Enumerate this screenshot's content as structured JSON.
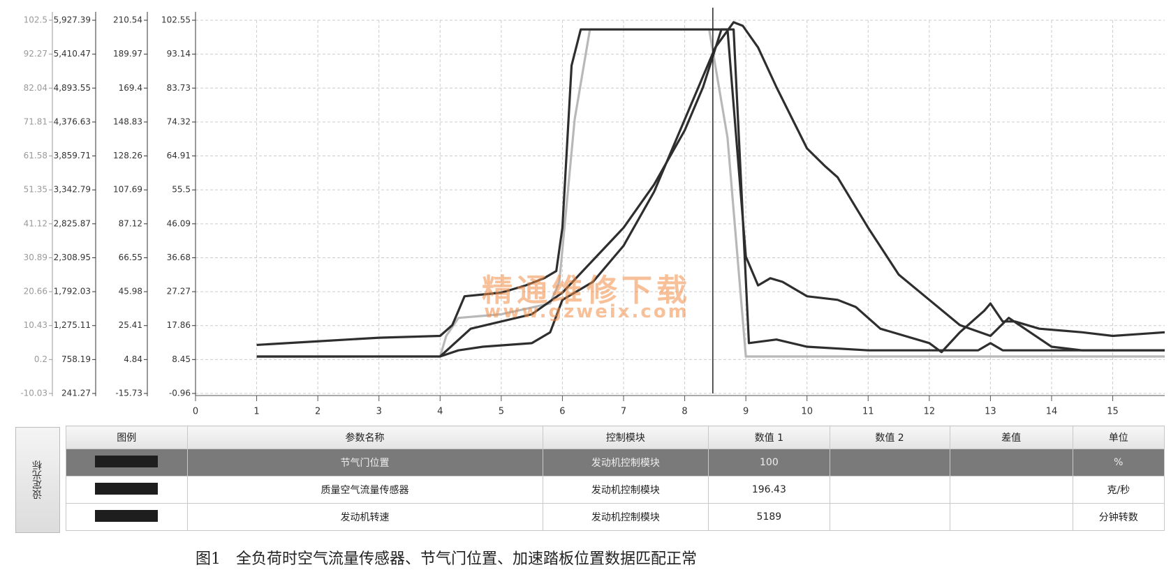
{
  "chart_data": {
    "type": "line",
    "xlim": [
      0,
      15.85
    ],
    "xticks": [
      0,
      1,
      2,
      3,
      4,
      5,
      6,
      7,
      8,
      9,
      10,
      11,
      12,
      13,
      14,
      15
    ],
    "grid": true,
    "cursor": 8.46,
    "y_axes": [
      {
        "color": "#9a9a9a",
        "ylim": [
          -10.03,
          102.5
        ],
        "yticks": [
          -10.03,
          0.2,
          10.43,
          20.66,
          30.89,
          41.12,
          51.35,
          61.58,
          71.81,
          82.04,
          92.27,
          102.5
        ]
      },
      {
        "color": "#333333",
        "ylim": [
          241.27,
          5927.39
        ],
        "yticks": [
          241.27,
          758.19,
          {
            "value": 1275.11,
            "label": "1,275.11"
          },
          {
            "value": 1792.03,
            "label": "1,792.03"
          },
          {
            "value": 2308.95,
            "label": "2,308.95"
          },
          {
            "value": 2825.87,
            "label": "2,825.87"
          },
          {
            "value": 3342.79,
            "label": "3,342.79"
          },
          {
            "value": 3859.71,
            "label": "3,859.71"
          },
          {
            "value": 4376.63,
            "label": "4,376.63"
          },
          {
            "value": 4893.55,
            "label": "4,893.55"
          },
          {
            "value": 5410.47,
            "label": "5,410.47"
          },
          {
            "value": 5927.39,
            "label": "5,927.39"
          }
        ]
      },
      {
        "color": "#333333",
        "ylim": [
          -15.73,
          210.54
        ],
        "yticks": [
          -15.73,
          4.84,
          25.41,
          45.98,
          66.55,
          87.12,
          107.69,
          128.26,
          148.83,
          169.4,
          189.97,
          210.54
        ]
      },
      {
        "color": "#333333",
        "ylim": [
          -0.96,
          102.55
        ],
        "yticks": [
          -0.96,
          8.45,
          17.86,
          27.27,
          36.68,
          46.09,
          55.5,
          64.91,
          74.32,
          83.73,
          93.14,
          102.55
        ]
      }
    ],
    "series": [
      {
        "color": "#b8b8b8",
        "x": [
          1,
          2,
          3,
          4,
          4.1,
          4.3,
          5,
          5.8,
          5.95,
          6.2,
          6.45,
          8.4,
          8.7,
          9.0,
          10,
          12,
          13,
          14,
          15.85
        ],
        "values": [
          9.2,
          9.2,
          9.3,
          9.3,
          15,
          20,
          21,
          24,
          30,
          75,
          100,
          100,
          70,
          9.3,
          9.3,
          9.3,
          9.3,
          9.3,
          9.3
        ]
      },
      {
        "color": "#2e2e2e",
        "x": [
          1,
          2,
          3,
          4,
          4.2,
          4.4,
          5,
          5.4,
          5.7,
          5.9,
          6,
          6.15,
          6.3,
          6.5,
          8.7,
          9.0,
          9.2,
          9.4,
          9.6,
          10,
          10.5,
          10.8,
          11.2,
          12,
          12.2,
          12.5,
          12.9,
          13,
          13.2,
          13.4,
          13.8,
          14.5,
          15,
          15.85
        ],
        "values": [
          12.5,
          13.5,
          14.5,
          15,
          18,
          26,
          27,
          29,
          31,
          33,
          45,
          90,
          100,
          100,
          100,
          37,
          29,
          31,
          30,
          26,
          25,
          23,
          17,
          13,
          10.5,
          16,
          22,
          24,
          19,
          19,
          17,
          16,
          15,
          16
        ]
      },
      {
        "color": "#2e2e2e",
        "x": [
          1,
          2,
          3,
          4,
          4.5,
          5,
          5.5,
          6,
          6.5,
          7,
          7.5,
          8,
          8.3,
          8.6,
          8.8,
          9.05,
          9.5,
          10,
          11,
          12,
          12.8,
          13,
          13.2,
          14,
          15.85
        ],
        "values": [
          9.3,
          9.3,
          9.3,
          9.3,
          17,
          19,
          21,
          27,
          36,
          45,
          57,
          72,
          84,
          100,
          100,
          13,
          14,
          12,
          11,
          11,
          11,
          13,
          11,
          11,
          11
        ]
      },
      {
        "color": "#2e2e2e",
        "x": [
          4,
          4.3,
          4.7,
          5.5,
          5.8,
          6,
          6.5,
          7,
          7.5,
          8,
          8.5,
          8.8,
          8.95,
          9.2,
          9.5,
          10,
          10.3,
          10.5,
          11,
          11.5,
          12,
          12.5,
          13,
          13.3,
          14,
          14.5,
          15.85
        ],
        "values": [
          9.3,
          11,
          12,
          13,
          16,
          25,
          30,
          40,
          55,
          75,
          95,
          102,
          101,
          95,
          84,
          67,
          62,
          59,
          45,
          32,
          25,
          18,
          15,
          20,
          12,
          11,
          11
        ]
      }
    ]
  },
  "watermark": {
    "title": "精通维修下载",
    "url": "www.gzweix.com"
  },
  "cursor_button": "设定光标",
  "table": {
    "headers": [
      "图例",
      "参数名称",
      "控制模块",
      "数值 1",
      "数值 2",
      "差值",
      "单位"
    ],
    "rows": [
      {
        "name": "节气门位置",
        "module": "发动机控制模块",
        "value1": 100,
        "unit": "%",
        "selected": true
      },
      {
        "name": "质量空气流量传感器",
        "module": "发动机控制模块",
        "value1": 196.43,
        "unit": "克/秒",
        "selected": false
      },
      {
        "name": "发动机转速",
        "module": "发动机控制模块",
        "value1": 5189,
        "unit": "分钟转数",
        "selected": false
      }
    ]
  },
  "caption": "图1　全负荷时空气流量传感器、节气门位置、加速踏板位置数据匹配正常"
}
